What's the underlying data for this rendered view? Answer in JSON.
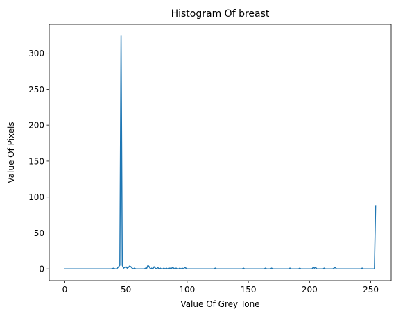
{
  "chart_data": {
    "type": "line",
    "title": "Histogram Of breast",
    "xlabel": "Value Of Grey Tone",
    "ylabel": "Value Of Pixels",
    "xlim": [
      -12.7,
      266.7
    ],
    "ylim": [
      -16.2,
      340.2
    ],
    "xticks": [
      0,
      50,
      100,
      150,
      200,
      250
    ],
    "yticks": [
      0,
      50,
      100,
      150,
      200,
      250,
      300
    ],
    "grid": false,
    "line_color": "#1f77b4",
    "series": [
      {
        "x": [
          0,
          10,
          20,
          30,
          38,
          40,
          41,
          42,
          43,
          44,
          45,
          46,
          47,
          48,
          49,
          50,
          51,
          52,
          53,
          54,
          55,
          56,
          57,
          58,
          59,
          60,
          61,
          62,
          63,
          64,
          65,
          66,
          67,
          68,
          69,
          70,
          71,
          72,
          73,
          74,
          75,
          76,
          77,
          78,
          79,
          80,
          81,
          82,
          83,
          84,
          85,
          86,
          87,
          88,
          89,
          90,
          91,
          92,
          93,
          94,
          95,
          96,
          97,
          98,
          99,
          100,
          110,
          120,
          122,
          123,
          124,
          130,
          140,
          145,
          146,
          147,
          150,
          160,
          163,
          164,
          165,
          168,
          169,
          170,
          180,
          183,
          184,
          185,
          190,
          191,
          192,
          193,
          200,
          202,
          203,
          204,
          205,
          206,
          207,
          210,
          211,
          212,
          213,
          218,
          219,
          220,
          221,
          222,
          230,
          240,
          242,
          243,
          244,
          250,
          252,
          253,
          254
        ],
        "y": [
          0,
          0,
          0,
          0,
          0,
          1,
          0,
          0,
          1,
          3,
          5,
          324,
          5,
          1,
          2,
          3,
          1,
          2,
          4,
          3,
          1,
          0,
          1,
          0,
          0,
          0,
          0,
          0,
          0,
          0,
          0,
          1,
          1,
          5,
          3,
          0,
          1,
          0,
          3,
          1,
          0,
          2,
          0,
          1,
          0,
          0,
          1,
          0,
          1,
          0,
          1,
          1,
          0,
          2,
          1,
          0,
          1,
          0,
          0,
          1,
          0,
          1,
          0,
          2,
          1,
          0,
          0,
          0,
          0,
          1,
          0,
          0,
          0,
          0,
          1,
          0,
          0,
          0,
          0,
          1,
          0,
          0,
          1,
          0,
          0,
          0,
          1,
          0,
          0,
          0,
          1,
          0,
          0,
          0,
          2,
          1,
          2,
          0,
          0,
          0,
          0,
          1,
          0,
          0,
          0,
          1,
          2,
          0,
          0,
          0,
          0,
          1,
          0,
          0,
          0,
          0,
          88
        ]
      }
    ]
  }
}
